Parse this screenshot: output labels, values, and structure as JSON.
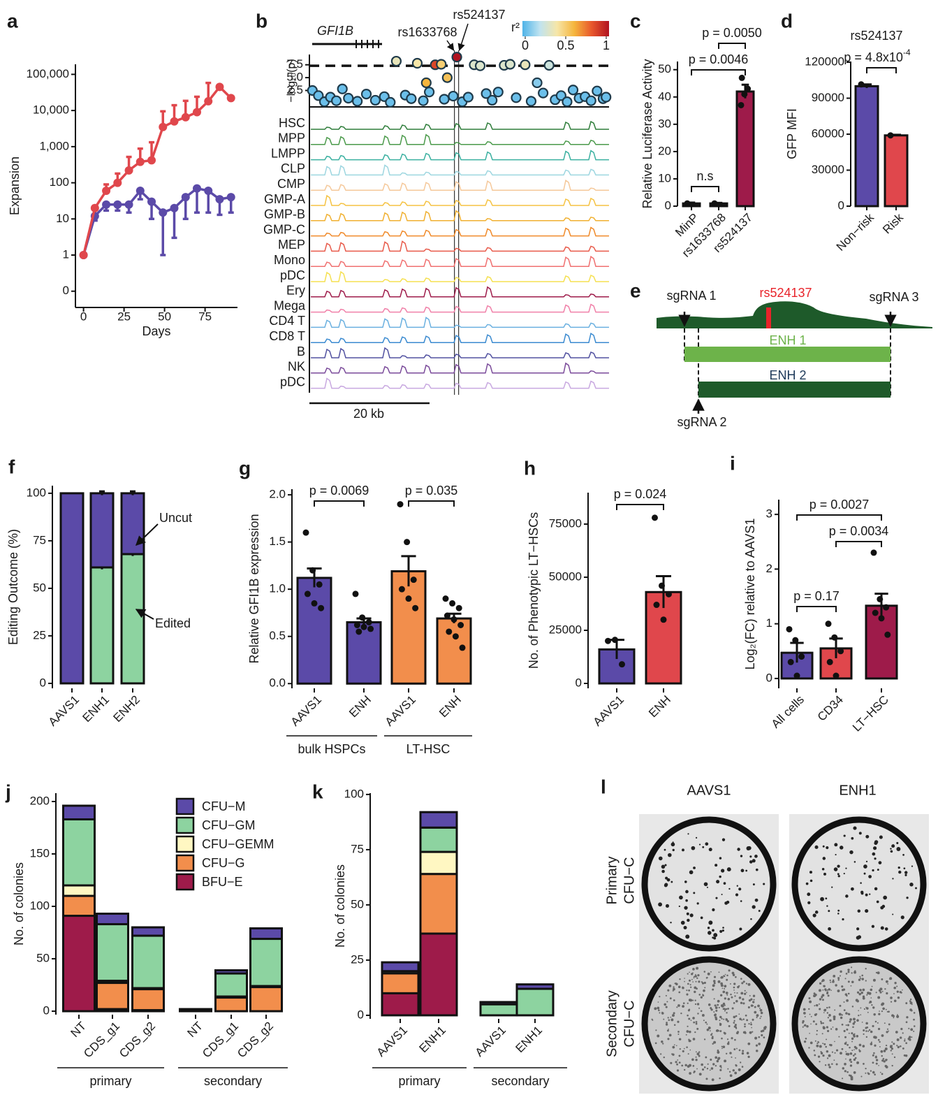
{
  "chart_data": [
    {
      "label": "a",
      "type": "line",
      "ylabel": "Expansion",
      "xlabel": "Days",
      "yscale": "symlog",
      "xlim": [
        -5,
        95
      ],
      "ylim": [
        -0.45,
        190000
      ],
      "xticks": [
        0,
        25,
        50,
        75
      ],
      "yticks": [
        0,
        1,
        10,
        100,
        {
          "value": 1000,
          "label": "1,000"
        },
        {
          "value": 10000,
          "label": "10,000"
        },
        {
          "value": 100000,
          "label": "100,000"
        }
      ],
      "x": [
        0,
        7,
        14,
        21,
        28,
        35,
        42,
        49,
        56,
        63,
        70,
        77,
        84,
        91
      ],
      "series": [
        {
          "color": "#e0474c",
          "values": [
            1,
            20,
            60,
            100,
            220,
            380,
            420,
            3500,
            5000,
            6500,
            9000,
            18000,
            45000,
            22000
          ],
          "errors": [
            0,
            3,
            30,
            80,
            300,
            500,
            900,
            6000,
            9000,
            12000,
            15000,
            40000,
            0,
            0
          ],
          "error_direction": "up"
        },
        {
          "color": "#5b4aa8",
          "values": [
            1,
            12,
            25,
            25,
            25,
            60,
            30,
            15,
            20,
            40,
            70,
            60,
            35,
            40
          ],
          "errors": [
            0,
            3,
            8,
            8,
            10,
            25,
            20,
            14,
            17,
            30,
            55,
            45,
            22,
            25
          ],
          "error_direction": "down"
        }
      ]
    },
    {
      "label": "b",
      "type": "scatter",
      "ylabel": "−log₁₀(p)",
      "gene": "GFI1B",
      "snps": [
        "rs1633768",
        "rs524137"
      ],
      "colorbar_title": "r²",
      "clim": [
        0,
        1
      ],
      "cticks": [
        0,
        0.5,
        1
      ],
      "colorscale": [
        "#4fb3e8",
        "#bfe3f0",
        "#f6e6a8",
        "#f5b53c",
        "#e8572c",
        "#b1121f"
      ],
      "xlim": [
        0,
        50
      ],
      "ylim": [
        -0.7,
        9.5
      ],
      "yticks": [
        2.5,
        {
          "value": 5,
          "label": "5.0"
        },
        {
          "value": 7.5,
          "label": "7.5"
        }
      ],
      "threshold": 7.3,
      "highlight_x": [
        24.2,
        24.9
      ],
      "scale_bar": "20 kb",
      "x": [
        0.5,
        1.5,
        2.5,
        3.5,
        4.5,
        5.5,
        6.5,
        8,
        9.5,
        11,
        12.5,
        13.5,
        14.5,
        16,
        17,
        18,
        19,
        19.5,
        20,
        21,
        22,
        22.5,
        23,
        24,
        24.6,
        25.5,
        26.5,
        27.5,
        28.5,
        29.5,
        30.5,
        31.5,
        32.5,
        33.5,
        34.5,
        36,
        37,
        38,
        39,
        40,
        41,
        42,
        43,
        44,
        45,
        46,
        47,
        48,
        49,
        49.5
      ],
      "values": [
        2.5,
        1.5,
        0.3,
        1.2,
        0.5,
        2.8,
        1.0,
        0.4,
        1.8,
        0.6,
        1.3,
        0.2,
        8.2,
        1.6,
        0.9,
        7.8,
        0.5,
        4.0,
        2.2,
        7.5,
        7.6,
        0.8,
        5.0,
        1.4,
        9.0,
        0.3,
        1.2,
        7.5,
        7.3,
        1.9,
        0.6,
        2.2,
        7.4,
        7.6,
        1.1,
        7.5,
        0.4,
        4.0,
        2.0,
        7.4,
        0.7,
        1.5,
        0.3,
        2.6,
        1.0,
        1.3,
        0.5,
        2.4,
        0.9,
        1.2
      ],
      "r2": [
        0.05,
        0.05,
        0.05,
        0.05,
        0.05,
        0.05,
        0.05,
        0.05,
        0.05,
        0.05,
        0.05,
        0.05,
        0.35,
        0.05,
        0.05,
        0.4,
        0.05,
        0.6,
        0.05,
        0.85,
        0.5,
        0.05,
        0.55,
        0.05,
        1,
        0.05,
        0.05,
        0.3,
        0.3,
        0.05,
        0.05,
        0.05,
        0.3,
        0.3,
        0.05,
        0.35,
        0.05,
        0.1,
        0.05,
        0.25,
        0.05,
        0.05,
        0.05,
        0.05,
        0.05,
        0.05,
        0.05,
        0.05,
        0.05,
        0.05
      ],
      "tracks": [
        {
          "name": "HSC",
          "color": "#2e7d3a"
        },
        {
          "name": "MPP",
          "color": "#4a9a4a"
        },
        {
          "name": "LMPP",
          "color": "#3ab0a0"
        },
        {
          "name": "CLP",
          "color": "#9dd6e0"
        },
        {
          "name": "CMP",
          "color": "#f5c89a"
        },
        {
          "name": "GMP-A",
          "color": "#f5c242"
        },
        {
          "name": "GMP-B",
          "color": "#f0b030"
        },
        {
          "name": "GMP-C",
          "color": "#f08a2a"
        },
        {
          "name": "MEP",
          "color": "#e85a4a"
        },
        {
          "name": "Mono",
          "color": "#f07070"
        },
        {
          "name": "pDC",
          "color": "#f5e050"
        },
        {
          "name": "Ery",
          "color": "#9e1b4a"
        },
        {
          "name": "Mega",
          "color": "#f080a8"
        },
        {
          "name": "CD4 T",
          "color": "#6ab0e0"
        },
        {
          "name": "CD8 T",
          "color": "#3a8ad0"
        },
        {
          "name": "B",
          "color": "#5050a0"
        },
        {
          "name": "NK",
          "color": "#7a4a9a"
        },
        {
          "name": "pDC",
          "color": "#c8a8e0"
        }
      ]
    },
    {
      "label": "c",
      "type": "bar",
      "ylabel": "Relative Luciferase Activity",
      "categories": [
        "MinP",
        "rs1633768",
        "rs524137"
      ],
      "values": [
        1,
        1,
        42
      ],
      "errors": [
        0.3,
        0.2,
        2.5
      ],
      "colors": [
        "#1a1a1a",
        "#1a1a1a",
        "#9e1b4a"
      ],
      "points": [
        [
          1
        ],
        [
          1
        ],
        [
          37,
          41,
          43,
          47
        ]
      ],
      "ylim": [
        0,
        53
      ],
      "yticks": [
        0,
        10,
        20,
        30,
        40,
        50
      ],
      "annotations": [
        "n.s",
        "p = 0.0046",
        "p = 0.0050"
      ]
    },
    {
      "label": "d",
      "type": "bar",
      "title": "rs524137",
      "ylabel": "GFP MFI",
      "categories": [
        "Non−risk",
        "Risk"
      ],
      "values": [
        100000,
        59000
      ],
      "errors": [
        1500,
        500
      ],
      "colors": [
        "#5b4aa8",
        "#e0474c"
      ],
      "points": [
        [
          101500
        ],
        [
          59000
        ]
      ],
      "ylim": [
        0,
        120600
      ],
      "yticks": [
        0,
        30000,
        60000,
        90000,
        120000
      ],
      "annotations": [
        {
          "text": "p = 4.8x10",
          "sup": "-4"
        }
      ]
    },
    {
      "label": "f",
      "type": "stacked_bar",
      "ylabel": "Editing Outcome (%)",
      "legend": "arrows",
      "categories": [
        "AAVS1",
        "ENH1",
        "ENH2"
      ],
      "series": [
        {
          "name": "Edited",
          "color": "#8dd3a0",
          "values": [
            0,
            61,
            68
          ],
          "errors": [
            0,
            1,
            1
          ]
        },
        {
          "name": "Uncut",
          "color": "#5b4aa8",
          "values": [
            100,
            39,
            32
          ],
          "errors": [
            0,
            1,
            1
          ]
        }
      ],
      "ylim": [
        -2.6,
        104
      ],
      "yticks": [
        0,
        25,
        50,
        75,
        100
      ]
    },
    {
      "label": "g",
      "type": "bar",
      "ylabel": "Relative GFI1B expression",
      "categories": [
        "AAVS1",
        "ENH",
        "AAVS1",
        "ENH"
      ],
      "groups": [
        "bulk HSPCs",
        "LT-HSC"
      ],
      "values": [
        1.12,
        0.65,
        1.19,
        0.69
      ],
      "errors": [
        0.1,
        0.04,
        0.16,
        0.05
      ],
      "colors": [
        "#5b4aa8",
        "#5b4aa8",
        "#f28e4c",
        "#f28e4c"
      ],
      "points": [
        [
          1.6,
          1.2,
          1.05,
          0.95,
          0.85,
          0.8
        ],
        [
          0.95,
          0.7,
          0.65,
          0.62,
          0.6,
          0.58,
          0.55
        ],
        [
          1.9,
          1.5,
          1.1,
          1.0,
          0.9,
          0.8
        ],
        [
          0.9,
          0.85,
          0.8,
          0.72,
          0.68,
          0.62,
          0.55,
          0.5,
          0.38
        ]
      ],
      "ylim": [
        -0.05,
        2.06
      ],
      "yticks": [
        {
          "value": 0,
          "label": "0.0"
        },
        0.5,
        {
          "value": 1,
          "label": "1.0"
        },
        1.5,
        {
          "value": 2,
          "label": "2.0"
        }
      ],
      "annotations": [
        "p = 0.0069",
        "p = 0.035"
      ]
    },
    {
      "label": "h",
      "type": "bar",
      "ylabel": "No. of Phenotypic LT−HSCs",
      "categories": [
        "AAVS1",
        "ENH"
      ],
      "values": [
        16000,
        43000
      ],
      "errors": [
        4500,
        7500
      ],
      "colors": [
        "#5b4aa8",
        "#e0474c"
      ],
      "points": [
        [
          20000,
          20500,
          9000
        ],
        [
          78000,
          46000,
          42000,
          37000,
          30000
        ]
      ],
      "ylim": [
        -2300,
        89800
      ],
      "yticks": [
        0,
        25000,
        50000,
        75000
      ],
      "annotations": [
        "p = 0.024"
      ]
    },
    {
      "label": "i",
      "type": "bar",
      "ylabel": "Log₂(FC) relative to AAVS1",
      "categories": [
        "All cells",
        "CD34",
        "LT−HSC"
      ],
      "values": [
        0.47,
        0.55,
        1.33
      ],
      "errors": [
        0.18,
        0.18,
        0.22
      ],
      "colors": [
        "#5b4aa8",
        "#e0474c",
        "#9e1b4a"
      ],
      "points": [
        [
          0.9,
          0.7,
          0.4,
          0.3,
          0.05
        ],
        [
          1.0,
          0.75,
          0.5,
          0.3,
          0.05
        ],
        [
          2.3,
          1.45,
          1.3,
          1.2,
          1.1,
          0.8
        ]
      ],
      "ylim": [
        -0.18,
        3.27
      ],
      "yticks": [
        0,
        1,
        2,
        3
      ],
      "annotations": [
        "p = 0.0027",
        "p = 0.0034",
        "p = 0.17"
      ]
    },
    {
      "label": "j",
      "type": "stacked_bar",
      "ylabel": "No. of colonies",
      "legend": "top right",
      "categories": [
        "NT",
        "CDS_g1",
        "CDS_g2",
        "NT",
        "CDS_g1",
        "CDS_g2"
      ],
      "groups": [
        "primary",
        "secondary"
      ],
      "series": [
        {
          "name": "BFU−E",
          "color": "#9e1b4a",
          "values": [
            91,
            2,
            1,
            0,
            0,
            0
          ]
        },
        {
          "name": "CFU−G",
          "color": "#f28e4c",
          "values": [
            19,
            25,
            20,
            0,
            13,
            23
          ]
        },
        {
          "name": "CFU−GEMM",
          "color": "#fff7c2",
          "values": [
            10,
            2,
            1,
            0,
            1,
            1
          ]
        },
        {
          "name": "CFU−GM",
          "color": "#8dd3a0",
          "values": [
            63,
            54,
            50,
            1,
            22,
            45
          ]
        },
        {
          "name": "CFU−M",
          "color": "#5b4aa8",
          "values": [
            13,
            10,
            8,
            1,
            3,
            10
          ]
        }
      ],
      "ylim": [
        -3.3,
        208
      ],
      "yticks": [
        0,
        50,
        100,
        150,
        200
      ]
    },
    {
      "label": "k",
      "type": "stacked_bar",
      "ylabel": "No. of colonies",
      "categories": [
        "AAVS1",
        "ENH1",
        "AAVS1",
        "ENH1"
      ],
      "groups": [
        "primary",
        "secondary"
      ],
      "series": [
        {
          "color": "#9e1b4a",
          "values": [
            10,
            37,
            0,
            0
          ]
        },
        {
          "color": "#f28e4c",
          "values": [
            9,
            27,
            0,
            0
          ]
        },
        {
          "color": "#fff7c2",
          "values": [
            0,
            10,
            0,
            0
          ]
        },
        {
          "color": "#8dd3a0",
          "values": [
            1,
            11,
            5,
            12
          ]
        },
        {
          "color": "#5b4aa8",
          "values": [
            4,
            7,
            1,
            2
          ]
        }
      ],
      "ylim": [
        -1.6,
        100.6
      ],
      "yticks": [
        0,
        25,
        50,
        75,
        100
      ]
    }
  ],
  "diagram": {
    "label": "e",
    "snp": "rs524137",
    "sgrnas": [
      "sgRNA 1",
      "sgRNA 2",
      "sgRNA 3"
    ],
    "enhancers": [
      "ENH 1",
      "ENH 2"
    ]
  },
  "images": {
    "label": "l",
    "columns": [
      "AAVS1",
      "ENH1"
    ],
    "rows": [
      [
        "Primary",
        "CFU−C"
      ],
      [
        "Secondary",
        "CFU−C"
      ]
    ]
  }
}
